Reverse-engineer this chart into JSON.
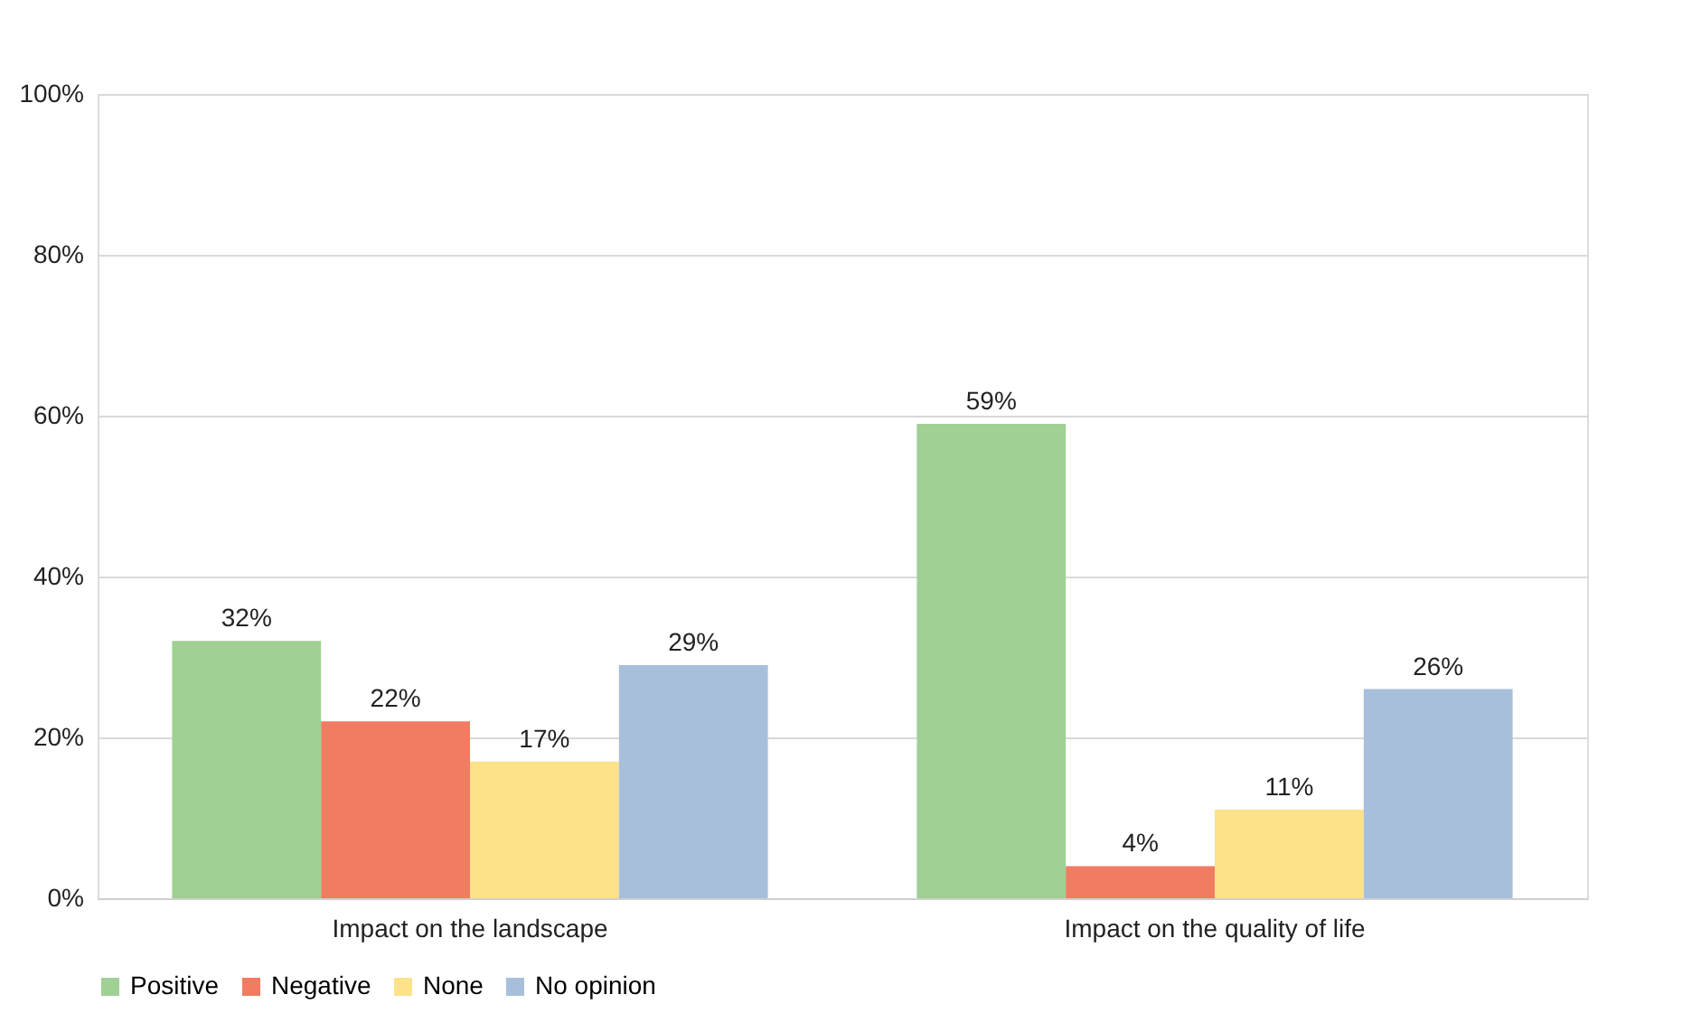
{
  "chart_data": {
    "type": "bar",
    "categories": [
      "Impact on the landscape",
      "Impact on the quality of life"
    ],
    "series": [
      {
        "name": "Positive",
        "color": "#a0d094",
        "values": [
          32,
          59
        ],
        "value_labels": [
          "32%",
          "59%"
        ]
      },
      {
        "name": "Negative",
        "color": "#f07c62",
        "values": [
          22,
          4
        ],
        "value_labels": [
          "22%",
          "4%"
        ]
      },
      {
        "name": "None",
        "color": "#fde28a",
        "values": [
          17,
          11
        ],
        "value_labels": [
          "17%",
          "11%"
        ]
      },
      {
        "name": "No opinion",
        "color": "#a8bfdc",
        "values": [
          29,
          26
        ],
        "value_labels": [
          "29%",
          "26%"
        ]
      }
    ],
    "ylim": [
      0,
      100
    ],
    "yticks": [
      {
        "value": 0,
        "label": "0%"
      },
      {
        "value": 20,
        "label": "20%"
      },
      {
        "value": 40,
        "label": "40%"
      },
      {
        "value": 60,
        "label": "60%"
      },
      {
        "value": 80,
        "label": "80%"
      },
      {
        "value": 100,
        "label": "100%"
      }
    ],
    "grid": "y",
    "legend": "bottom"
  }
}
